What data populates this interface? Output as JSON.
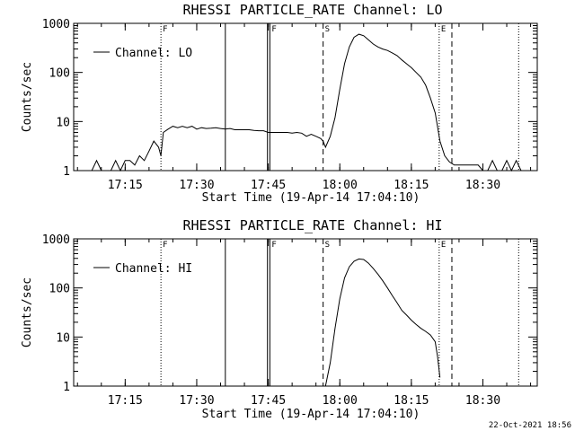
{
  "chart_data": [
    {
      "type": "line",
      "title": "RHESSI PARTICLE_RATE Channel: LO",
      "xlabel": "Start Time (19-Apr-14 17:04:10)",
      "ylabel": "Counts/sec",
      "yscale": "log",
      "ylim": [
        1,
        1000
      ],
      "xlim_minutes": [
        17.07,
        18.69
      ],
      "x_ticks": [
        "17:15",
        "17:30",
        "17:45",
        "18:00",
        "18:15",
        "18:30"
      ],
      "y_ticks": [
        "1",
        "10",
        "100",
        "1000"
      ],
      "legend": "Channel: LO",
      "legend_position": "top-left",
      "markers": [
        {
          "label": "F",
          "time": "17:22:30",
          "style": "dotted"
        },
        {
          "label": "",
          "time": "17:36:00",
          "style": "solid"
        },
        {
          "label": "",
          "time": "17:44:50",
          "style": "solid"
        },
        {
          "label": "F",
          "time": "17:45:20",
          "style": "solid"
        },
        {
          "label": "S",
          "time": "17:56:30",
          "style": "dashed"
        },
        {
          "label": "E",
          "time": "18:20:50",
          "style": "dotted"
        },
        {
          "label": "",
          "time": "18:23:30",
          "style": "dashed"
        },
        {
          "label": "",
          "time": "18:37:30",
          "style": "dotted"
        }
      ],
      "series": [
        {
          "name": "Channel: LO",
          "x": [
            "17:07",
            "17:08",
            "17:09",
            "17:10",
            "17:11",
            "17:12",
            "17:13",
            "17:14",
            "17:15",
            "17:16",
            "17:17",
            "17:18",
            "17:19",
            "17:20",
            "17:21",
            "17:22",
            "17:22:30",
            "17:23",
            "17:24",
            "17:25",
            "17:26",
            "17:27",
            "17:28",
            "17:29",
            "17:30",
            "17:31",
            "17:32",
            "17:33",
            "17:34",
            "17:35",
            "17:36",
            "17:37",
            "17:38",
            "17:39",
            "17:40",
            "17:41",
            "17:42",
            "17:43",
            "17:44",
            "17:45",
            "17:46",
            "17:47",
            "17:48",
            "17:49",
            "17:50",
            "17:51",
            "17:52",
            "17:53",
            "17:54",
            "17:55",
            "17:56",
            "17:56:30",
            "17:57",
            "17:58",
            "17:59",
            "18:00",
            "18:01",
            "18:02",
            "18:03",
            "18:04",
            "18:05",
            "18:06",
            "18:07",
            "18:08",
            "18:09",
            "18:10",
            "18:11",
            "18:12",
            "18:13",
            "18:14",
            "18:15",
            "18:16",
            "18:17",
            "18:18",
            "18:19",
            "18:20",
            "18:21",
            "18:22",
            "18:23",
            "18:24",
            "18:25",
            "18:26",
            "18:27",
            "18:28",
            "18:29",
            "18:30",
            "18:31",
            "18:32",
            "18:33",
            "18:34",
            "18:35",
            "18:36",
            "18:37",
            "18:38"
          ],
          "y": [
            1,
            1,
            1.6,
            1,
            1,
            1,
            1.6,
            1,
            1.6,
            1.6,
            1.3,
            2,
            1.6,
            2.5,
            4,
            3,
            2,
            6,
            7,
            8,
            7.5,
            8,
            7.5,
            8,
            7,
            7.5,
            7.2,
            7.3,
            7.5,
            7.2,
            7,
            7.2,
            6.8,
            6.8,
            6.8,
            6.8,
            6.6,
            6.5,
            6.5,
            6,
            6,
            6,
            6,
            6,
            5.8,
            6,
            5.8,
            5,
            5.5,
            5,
            4.5,
            4,
            3,
            5,
            12,
            45,
            150,
            330,
            520,
            600,
            560,
            460,
            380,
            330,
            300,
            280,
            250,
            220,
            180,
            150,
            125,
            100,
            80,
            55,
            30,
            15,
            4,
            2,
            1.5,
            1.3,
            1.3,
            1.3,
            1.3,
            1.3,
            1.3,
            1,
            1,
            1.6,
            1,
            1,
            1.6,
            1,
            1.6,
            1
          ]
        }
      ]
    },
    {
      "type": "line",
      "title": "RHESSI PARTICLE_RATE Channel: HI",
      "xlabel": "Start Time (19-Apr-14 17:04:10)",
      "ylabel": "Counts/sec",
      "yscale": "log",
      "ylim": [
        1,
        1000
      ],
      "xlim_minutes": [
        17.07,
        18.69
      ],
      "x_ticks": [
        "17:15",
        "17:30",
        "17:45",
        "18:00",
        "18:15",
        "18:30"
      ],
      "y_ticks": [
        "1",
        "10",
        "100",
        "1000"
      ],
      "legend": "Channel: HI",
      "legend_position": "top-left",
      "markers": [
        {
          "label": "F",
          "time": "17:22:30",
          "style": "dotted"
        },
        {
          "label": "",
          "time": "17:36:00",
          "style": "solid"
        },
        {
          "label": "",
          "time": "17:44:50",
          "style": "solid"
        },
        {
          "label": "F",
          "time": "17:45:20",
          "style": "solid"
        },
        {
          "label": "S",
          "time": "17:56:30",
          "style": "dashed"
        },
        {
          "label": "E",
          "time": "18:20:50",
          "style": "dotted"
        },
        {
          "label": "",
          "time": "18:23:30",
          "style": "dashed"
        },
        {
          "label": "",
          "time": "18:37:30",
          "style": "dotted"
        }
      ],
      "series": [
        {
          "name": "Channel: HI",
          "x": [
            "17:57",
            "17:58",
            "17:59",
            "18:00",
            "18:01",
            "18:02",
            "18:03",
            "18:04",
            "18:05",
            "18:06",
            "18:07",
            "18:08",
            "18:09",
            "18:10",
            "18:11",
            "18:12",
            "18:13",
            "18:14",
            "18:15",
            "18:16",
            "18:17",
            "18:18",
            "18:19",
            "18:20",
            "18:20:30",
            "18:21"
          ],
          "y": [
            1,
            3,
            15,
            60,
            160,
            270,
            350,
            390,
            380,
            320,
            250,
            190,
            140,
            100,
            70,
            50,
            35,
            28,
            22,
            18,
            15,
            13,
            11,
            8,
            4,
            1.5
          ]
        }
      ]
    }
  ],
  "footer": {
    "timestamp": "22-Oct-2021 18:56"
  }
}
